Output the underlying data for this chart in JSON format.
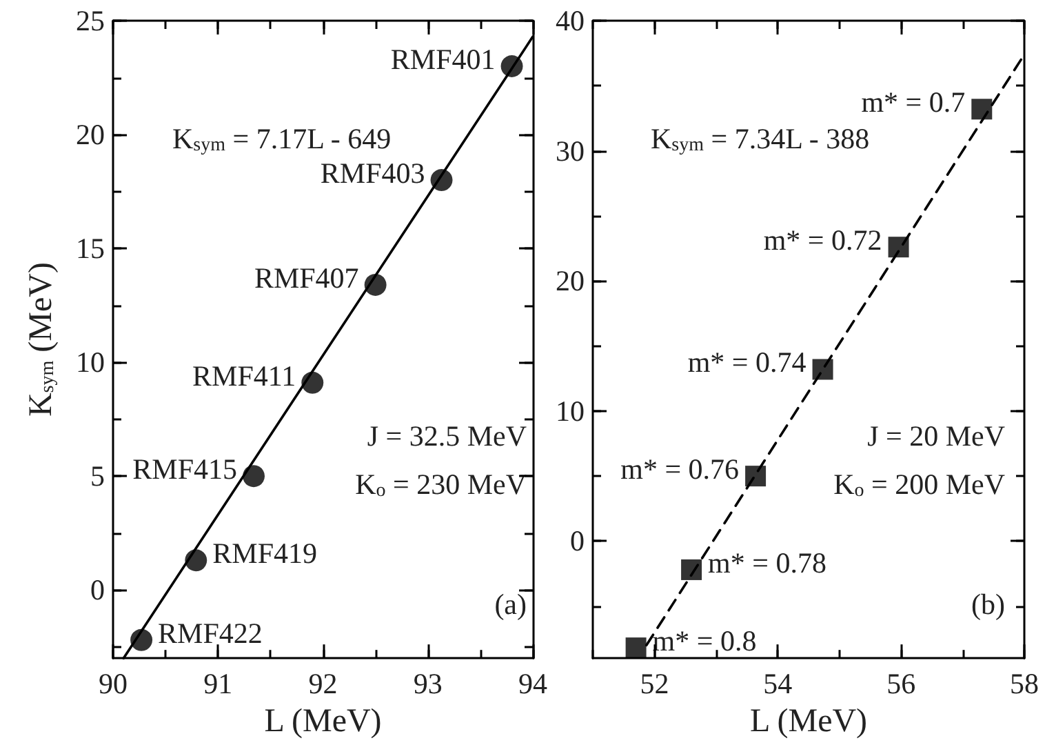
{
  "chart_data": [
    {
      "type": "scatter",
      "xlabel": "L (MeV)",
      "ylabel": "K$_{sym}$ (MeV)",
      "xlim": [
        90,
        94
      ],
      "xticks": [
        90,
        91,
        92,
        93,
        94
      ],
      "ylim": [
        -3,
        25
      ],
      "yticks": [
        0,
        5,
        10,
        15,
        20,
        25
      ],
      "legend": "top left",
      "series": [
        {
          "type": "scatter",
          "color": "#000000",
          "marker": "circle",
          "x": [
            90.27,
            90.79,
            91.34,
            91.9,
            92.5,
            93.13,
            93.8
          ],
          "values": [
            -2.2,
            1.3,
            5.0,
            9.1,
            13.4,
            18.0,
            23.0
          ]
        },
        {
          "type": "line",
          "name": "K$_{sym}$ = 7.17L - 649",
          "color": "#000000",
          "marker": "none",
          "line_style": "solid",
          "x": [
            90.1,
            94
          ],
          "values": [
            -3,
            24.3
          ]
        }
      ],
      "annotations": [
        {
          "text": "RMF422",
          "x": 90.27,
          "y": -2.2
        },
        {
          "text": "RMF419",
          "x": 90.79,
          "y": 1.3
        },
        {
          "text": "RMF415",
          "x": 91.34,
          "y": 5.0
        },
        {
          "text": "RMF411",
          "x": 91.9,
          "y": 9.1
        },
        {
          "text": "RMF407",
          "x": 92.5,
          "y": 13.4
        },
        {
          "text": "RMF403",
          "x": 93.13,
          "y": 18.0
        },
        {
          "text": "RMF401",
          "x": 93.8,
          "y": 23.0
        },
        "J = 32.5 MeV",
        "K$_{o}$ = 230 MeV",
        "(a)"
      ]
    },
    {
      "type": "scatter",
      "xlabel": "L (MeV)",
      "xlim": [
        51,
        58
      ],
      "xticks": [
        52,
        54,
        56,
        58
      ],
      "ylim": [
        -9,
        40
      ],
      "yticks": [
        0,
        10,
        20,
        30,
        40
      ],
      "legend": "top left",
      "series": [
        {
          "type": "scatter",
          "color": "#000000",
          "marker": "square",
          "x": [
            51.7,
            52.6,
            53.64,
            54.73,
            55.96,
            57.31
          ],
          "values": [
            -8.2,
            -2.2,
            5.0,
            13.2,
            22.6,
            33.2
          ]
        },
        {
          "type": "line",
          "name": "K$_{sym}$ = 7.34L - 388",
          "color": "#000000",
          "marker": "none",
          "line_style": "dashed",
          "x": [
            51.87,
            58
          ],
          "values": [
            -8,
            37.4
          ]
        }
      ],
      "annotations": [
        {
          "text": "m* = 0.8",
          "x": 51.7,
          "y": -8.2
        },
        {
          "text": "m* = 0.78",
          "x": 52.6,
          "y": -2.2
        },
        {
          "text": "m* = 0.76",
          "x": 53.64,
          "y": 5.0
        },
        {
          "text": "m* = 0.74",
          "x": 54.73,
          "y": 13.2
        },
        {
          "text": "m* = 0.72",
          "x": 55.96,
          "y": 22.6
        },
        {
          "text": "m* = 0.7",
          "x": 57.31,
          "y": 33.2
        },
        "J = 20 MeV",
        "K$_{o}$ = 200 MeV",
        "(b)"
      ]
    }
  ]
}
